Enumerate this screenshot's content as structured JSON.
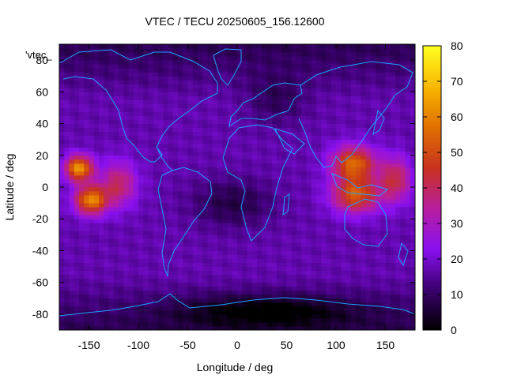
{
  "chart_data": {
    "type": "heatmap",
    "title": "VTEC / TECU 20250605_156.12600",
    "xlabel": "Longitude / deg",
    "ylabel": "Latitude / deg",
    "xlim": [
      -180,
      180
    ],
    "ylim": [
      -90,
      90
    ],
    "x_ticks": [
      -150,
      -100,
      -50,
      0,
      50,
      100,
      150
    ],
    "y_ticks": [
      -80,
      -60,
      -40,
      -20,
      0,
      20,
      40,
      60,
      80
    ],
    "colorbar": {
      "min": 0,
      "max": 80,
      "ticks": [
        0,
        10,
        20,
        30,
        40,
        50,
        60,
        70,
        80
      ],
      "palette": [
        "#000000",
        "#3a006e",
        "#8a10f0",
        "#b81e9e",
        "#c8321e",
        "#e07000",
        "#f8b800",
        "#ffff20"
      ]
    },
    "series_label": "'vtec_",
    "coastline_color": "#1ea0ff",
    "grid_resolution_deg": {
      "lon": 5,
      "lat": 2.5
    },
    "background_tec": 17,
    "features": [
      {
        "name": "anomaly-pacific-west",
        "lon": -160,
        "lat": 12,
        "peak": 63,
        "lon_spread": 14,
        "lat_spread": 8
      },
      {
        "name": "anomaly-pacific-south",
        "lon": -148,
        "lat": -8,
        "peak": 60,
        "lon_spread": 16,
        "lat_spread": 9
      },
      {
        "name": "anomaly-pacific-east",
        "lon": -120,
        "lat": 2,
        "peak": 40,
        "lon_spread": 18,
        "lat_spread": 14
      },
      {
        "name": "anomaly-asia-north",
        "lon": 118,
        "lat": 15,
        "peak": 55,
        "lon_spread": 22,
        "lat_spread": 11
      },
      {
        "name": "anomaly-asia-south",
        "lon": 120,
        "lat": -5,
        "peak": 52,
        "lon_spread": 24,
        "lat_spread": 11
      },
      {
        "name": "anomaly-asia-east",
        "lon": 160,
        "lat": 5,
        "peak": 42,
        "lon_spread": 16,
        "lat_spread": 14
      },
      {
        "name": "low-atlantic-africa",
        "lon": -5,
        "lat": -10,
        "peak": -10,
        "lon_spread": 40,
        "lat_spread": 15
      },
      {
        "name": "low-europe",
        "lon": 40,
        "lat": 55,
        "peak": -8,
        "lon_spread": 30,
        "lat_spread": 15
      },
      {
        "name": "low-south-polar",
        "lon": 30,
        "lat": -78,
        "peak": -14,
        "lon_spread": 90,
        "lat_spread": 10
      }
    ]
  }
}
